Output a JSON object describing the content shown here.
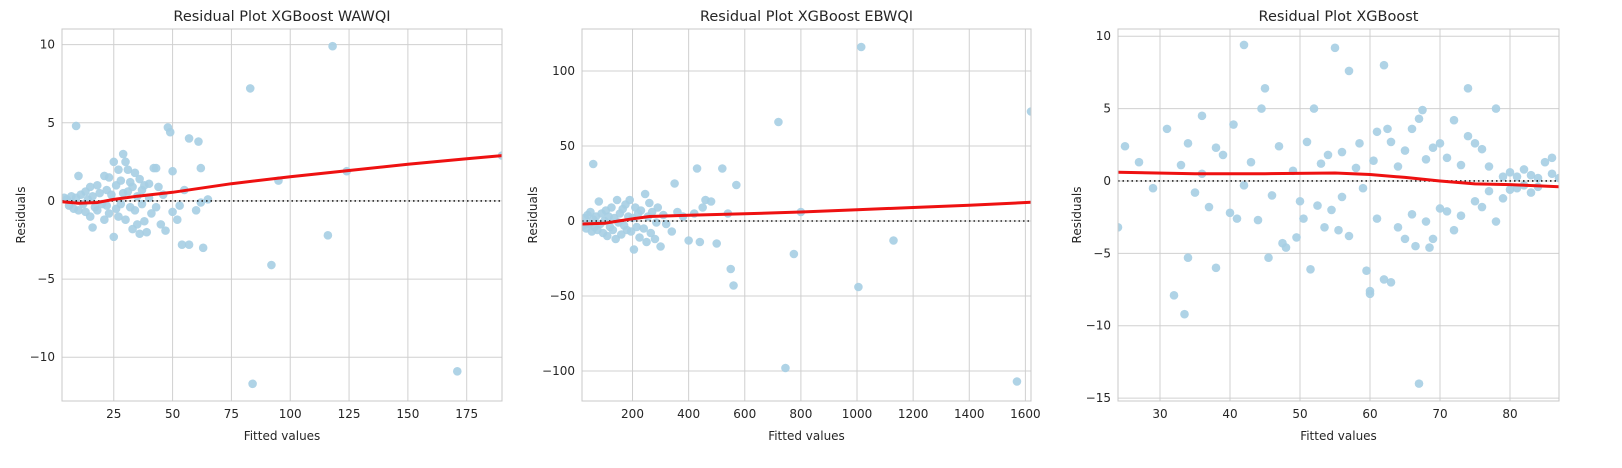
{
  "chart_data": [
    {
      "type": "scatter",
      "title": "Residual Plot XGBoost WAWQI",
      "xlabel": "Fitted values",
      "ylabel": "Residuals",
      "xlim": [
        3,
        190
      ],
      "ylim": [
        -12.8,
        11
      ],
      "xticks": [
        25,
        50,
        75,
        100,
        125,
        150,
        175
      ],
      "yticks": [
        -10,
        -5,
        0,
        5,
        10
      ],
      "grid": true,
      "point_color": "#a6cee3",
      "lowess_color": "#ee1111",
      "points": [
        [
          4,
          0.2
        ],
        [
          5,
          0.1
        ],
        [
          6,
          -0.3
        ],
        [
          7,
          0.3
        ],
        [
          8,
          -0.5
        ],
        [
          9,
          0.2
        ],
        [
          9,
          4.8
        ],
        [
          10,
          1.6
        ],
        [
          10,
          -0.6
        ],
        [
          11,
          0.4
        ],
        [
          12,
          -0.2
        ],
        [
          13,
          0.6
        ],
        [
          13,
          -0.7
        ],
        [
          14,
          0.1
        ],
        [
          15,
          -1.0
        ],
        [
          15,
          0.9
        ],
        [
          16,
          -1.7
        ],
        [
          16,
          0.3
        ],
        [
          17,
          -0.4
        ],
        [
          18,
          1.0
        ],
        [
          18,
          -0.6
        ],
        [
          19,
          0.5
        ],
        [
          20,
          -0.2
        ],
        [
          21,
          1.6
        ],
        [
          21,
          -1.2
        ],
        [
          22,
          0.7
        ],
        [
          22,
          -0.3
        ],
        [
          23,
          1.5
        ],
        [
          23,
          -0.8
        ],
        [
          24,
          0.4
        ],
        [
          25,
          -2.3
        ],
        [
          25,
          2.5
        ],
        [
          26,
          1.0
        ],
        [
          26,
          -0.5
        ],
        [
          27,
          2.0
        ],
        [
          27,
          -1.0
        ],
        [
          28,
          1.3
        ],
        [
          28,
          -0.2
        ],
        [
          29,
          3.0
        ],
        [
          29,
          0.5
        ],
        [
          30,
          2.5
        ],
        [
          30,
          -1.2
        ],
        [
          31,
          2.0
        ],
        [
          31,
          0.6
        ],
        [
          32,
          1.2
        ],
        [
          32,
          -0.4
        ],
        [
          33,
          -1.8
        ],
        [
          33,
          0.9
        ],
        [
          34,
          1.8
        ],
        [
          34,
          -0.6
        ],
        [
          35,
          0.3
        ],
        [
          35,
          -1.5
        ],
        [
          36,
          1.4
        ],
        [
          36,
          -2.1
        ],
        [
          37,
          0.7
        ],
        [
          37,
          -0.2
        ],
        [
          38,
          -1.3
        ],
        [
          38,
          1.0
        ],
        [
          39,
          -2.0
        ],
        [
          40,
          0.2
        ],
        [
          40,
          1.1
        ],
        [
          41,
          -0.8
        ],
        [
          42,
          2.1
        ],
        [
          43,
          2.1
        ],
        [
          43,
          -0.4
        ],
        [
          44,
          0.9
        ],
        [
          45,
          -1.5
        ],
        [
          46,
          0.4
        ],
        [
          47,
          -1.9
        ],
        [
          48,
          4.7
        ],
        [
          49,
          4.4
        ],
        [
          50,
          1.9
        ],
        [
          50,
          -0.7
        ],
        [
          52,
          -1.2
        ],
        [
          53,
          -0.3
        ],
        [
          54,
          -2.8
        ],
        [
          55,
          0.7
        ],
        [
          57,
          -2.8
        ],
        [
          57,
          4.0
        ],
        [
          60,
          -0.6
        ],
        [
          61,
          3.8
        ],
        [
          62,
          2.1
        ],
        [
          62,
          -0.1
        ],
        [
          63,
          -3.0
        ],
        [
          65,
          0.1
        ],
        [
          83,
          7.2
        ],
        [
          84,
          -11.7
        ],
        [
          92,
          -4.1
        ],
        [
          95,
          1.3
        ],
        [
          116,
          -2.2
        ],
        [
          118,
          9.9
        ],
        [
          124,
          1.9
        ],
        [
          171,
          -10.9
        ],
        [
          190,
          2.9
        ]
      ],
      "lowess": [
        [
          3,
          -0.05
        ],
        [
          10,
          -0.15
        ],
        [
          18,
          -0.1
        ],
        [
          25,
          0.1
        ],
        [
          35,
          0.3
        ],
        [
          50,
          0.55
        ],
        [
          75,
          1.1
        ],
        [
          100,
          1.55
        ],
        [
          125,
          1.95
        ],
        [
          150,
          2.35
        ],
        [
          175,
          2.7
        ],
        [
          190,
          2.9
        ]
      ]
    },
    {
      "type": "scatter",
      "title": "Residual Plot XGBoost EBWQI",
      "xlabel": "Fitted values",
      "ylabel": "Residuals",
      "xlim": [
        20,
        1620
      ],
      "ylim": [
        -120,
        128
      ],
      "xticks": [
        200,
        400,
        600,
        800,
        1000,
        1200,
        1400,
        1600
      ],
      "yticks": [
        -100,
        -50,
        0,
        50,
        100
      ],
      "grid": true,
      "point_color": "#a6cee3",
      "lowess_color": "#ee1111",
      "points": [
        [
          25,
          -3
        ],
        [
          30,
          2
        ],
        [
          35,
          -5
        ],
        [
          40,
          4
        ],
        [
          45,
          -2
        ],
        [
          50,
          6
        ],
        [
          55,
          -7
        ],
        [
          60,
          38
        ],
        [
          60,
          1
        ],
        [
          65,
          -4
        ],
        [
          70,
          3
        ],
        [
          75,
          -6
        ],
        [
          80,
          13
        ],
        [
          85,
          -2
        ],
        [
          90,
          5
        ],
        [
          95,
          -8
        ],
        [
          100,
          0
        ],
        [
          105,
          7
        ],
        [
          110,
          -10
        ],
        [
          115,
          3
        ],
        [
          120,
          -4
        ],
        [
          125,
          9
        ],
        [
          130,
          -6
        ],
        [
          135,
          2
        ],
        [
          140,
          -12
        ],
        [
          145,
          14
        ],
        [
          150,
          -1
        ],
        [
          155,
          5
        ],
        [
          160,
          -9
        ],
        [
          165,
          8
        ],
        [
          170,
          -3
        ],
        [
          175,
          11
        ],
        [
          180,
          -6
        ],
        [
          185,
          3
        ],
        [
          190,
          14
        ],
        [
          195,
          -7
        ],
        [
          200,
          2
        ],
        [
          205,
          -19
        ],
        [
          210,
          9
        ],
        [
          215,
          -4
        ],
        [
          220,
          5
        ],
        [
          225,
          -11
        ],
        [
          230,
          7
        ],
        [
          240,
          -5
        ],
        [
          245,
          18
        ],
        [
          250,
          -14
        ],
        [
          255,
          3
        ],
        [
          260,
          12
        ],
        [
          265,
          -8
        ],
        [
          270,
          6
        ],
        [
          280,
          -12
        ],
        [
          285,
          -1
        ],
        [
          290,
          9
        ],
        [
          300,
          -17
        ],
        [
          310,
          4
        ],
        [
          320,
          -2
        ],
        [
          340,
          -7
        ],
        [
          350,
          25
        ],
        [
          360,
          6
        ],
        [
          380,
          3
        ],
        [
          400,
          -13
        ],
        [
          420,
          5
        ],
        [
          430,
          35
        ],
        [
          440,
          -14
        ],
        [
          450,
          9
        ],
        [
          460,
          14
        ],
        [
          480,
          13
        ],
        [
          500,
          -15
        ],
        [
          520,
          35
        ],
        [
          540,
          5
        ],
        [
          550,
          -32
        ],
        [
          560,
          -43
        ],
        [
          570,
          24
        ],
        [
          720,
          66
        ],
        [
          745,
          -98
        ],
        [
          775,
          -22
        ],
        [
          800,
          6
        ],
        [
          1005,
          -44
        ],
        [
          1015,
          116
        ],
        [
          1130,
          -13
        ],
        [
          1570,
          -107
        ],
        [
          1620,
          73
        ]
      ],
      "lowess": [
        [
          20,
          -2
        ],
        [
          100,
          -1.5
        ],
        [
          150,
          0
        ],
        [
          200,
          1.5
        ],
        [
          260,
          3
        ],
        [
          400,
          3.8
        ],
        [
          600,
          4.8
        ],
        [
          800,
          6
        ],
        [
          1000,
          7.5
        ],
        [
          1200,
          9
        ],
        [
          1400,
          10.5
        ],
        [
          1620,
          12.5
        ]
      ]
    },
    {
      "type": "scatter",
      "title": "Residual Plot XGBoost",
      "xlabel": "Fitted values",
      "ylabel": "Residuals",
      "xlim": [
        24,
        87
      ],
      "ylim": [
        -15.2,
        10.5
      ],
      "xticks": [
        30,
        40,
        50,
        60,
        70,
        80
      ],
      "yticks": [
        -15,
        -10,
        -5,
        0,
        5,
        10
      ],
      "grid": true,
      "point_color": "#a6cee3",
      "lowess_color": "#ee1111",
      "points": [
        [
          24,
          -3.2
        ],
        [
          25,
          2.4
        ],
        [
          27,
          1.3
        ],
        [
          29,
          -0.5
        ],
        [
          31,
          3.6
        ],
        [
          32,
          -7.9
        ],
        [
          33,
          1.1
        ],
        [
          33.5,
          -9.2
        ],
        [
          34,
          -5.3
        ],
        [
          34,
          2.6
        ],
        [
          35,
          -0.8
        ],
        [
          36,
          4.5
        ],
        [
          36,
          0.5
        ],
        [
          37,
          -1.8
        ],
        [
          38,
          2.3
        ],
        [
          38,
          -6.0
        ],
        [
          39,
          1.8
        ],
        [
          40,
          -2.2
        ],
        [
          40.5,
          3.9
        ],
        [
          41,
          -2.6
        ],
        [
          42,
          9.4
        ],
        [
          42,
          -0.3
        ],
        [
          43,
          1.3
        ],
        [
          44,
          -2.7
        ],
        [
          44.5,
          5.0
        ],
        [
          45,
          6.4
        ],
        [
          45.5,
          -5.3
        ],
        [
          46,
          -1.0
        ],
        [
          47,
          2.4
        ],
        [
          47.5,
          -4.3
        ],
        [
          48,
          -4.6
        ],
        [
          49,
          0.7
        ],
        [
          49.5,
          -3.9
        ],
        [
          50,
          -1.4
        ],
        [
          50.5,
          -2.6
        ],
        [
          51,
          2.7
        ],
        [
          51.5,
          -6.1
        ],
        [
          52,
          5.0
        ],
        [
          52.5,
          -1.7
        ],
        [
          53,
          1.2
        ],
        [
          53.5,
          -3.2
        ],
        [
          54,
          1.8
        ],
        [
          54.5,
          -2.0
        ],
        [
          55,
          9.2
        ],
        [
          55.5,
          -3.4
        ],
        [
          56,
          2.0
        ],
        [
          56,
          -1.1
        ],
        [
          57,
          7.6
        ],
        [
          57,
          -3.8
        ],
        [
          58,
          0.9
        ],
        [
          58.5,
          2.6
        ],
        [
          59,
          -0.5
        ],
        [
          59.5,
          -6.2
        ],
        [
          60,
          -7.6
        ],
        [
          60,
          -7.8
        ],
        [
          60.5,
          1.4
        ],
        [
          61,
          -2.6
        ],
        [
          61,
          3.4
        ],
        [
          62,
          8.0
        ],
        [
          62,
          -6.8
        ],
        [
          62.5,
          3.6
        ],
        [
          63,
          -7.0
        ],
        [
          63,
          2.7
        ],
        [
          64,
          -3.2
        ],
        [
          64,
          1.0
        ],
        [
          65,
          -4.0
        ],
        [
          65,
          2.1
        ],
        [
          66,
          -2.3
        ],
        [
          66,
          3.6
        ],
        [
          66.5,
          -4.5
        ],
        [
          67,
          4.3
        ],
        [
          67,
          -14.0
        ],
        [
          67.5,
          4.9
        ],
        [
          68,
          -2.8
        ],
        [
          68,
          1.5
        ],
        [
          68.5,
          -4.6
        ],
        [
          69,
          2.3
        ],
        [
          69,
          -4.0
        ],
        [
          70,
          2.6
        ],
        [
          70,
          -1.9
        ],
        [
          71,
          1.6
        ],
        [
          71,
          -2.1
        ],
        [
          72,
          4.2
        ],
        [
          72,
          -3.4
        ],
        [
          73,
          1.1
        ],
        [
          73,
          -2.4
        ],
        [
          74,
          6.4
        ],
        [
          74,
          3.1
        ],
        [
          75,
          2.6
        ],
        [
          75,
          -1.4
        ],
        [
          76,
          2.2
        ],
        [
          76,
          -1.8
        ],
        [
          77,
          1.0
        ],
        [
          77,
          -0.7
        ],
        [
          78,
          5.0
        ],
        [
          78,
          -2.8
        ],
        [
          79,
          0.3
        ],
        [
          79,
          -1.2
        ],
        [
          80,
          0.6
        ],
        [
          80,
          -0.6
        ],
        [
          81,
          0.3
        ],
        [
          81,
          -0.5
        ],
        [
          82,
          0.8
        ],
        [
          82,
          -0.3
        ],
        [
          83,
          0.4
        ],
        [
          83,
          -0.8
        ],
        [
          84,
          0.2
        ],
        [
          84,
          -0.4
        ],
        [
          85,
          1.3
        ],
        [
          86,
          1.6
        ],
        [
          86,
          0.5
        ],
        [
          87,
          0.2
        ]
      ],
      "lowess": [
        [
          24,
          0.6
        ],
        [
          35,
          0.5
        ],
        [
          45,
          0.5
        ],
        [
          55,
          0.55
        ],
        [
          60,
          0.45
        ],
        [
          65,
          0.25
        ],
        [
          70,
          0.0
        ],
        [
          75,
          -0.2
        ],
        [
          80,
          -0.25
        ],
        [
          85,
          -0.35
        ],
        [
          87,
          -0.4
        ]
      ]
    }
  ]
}
